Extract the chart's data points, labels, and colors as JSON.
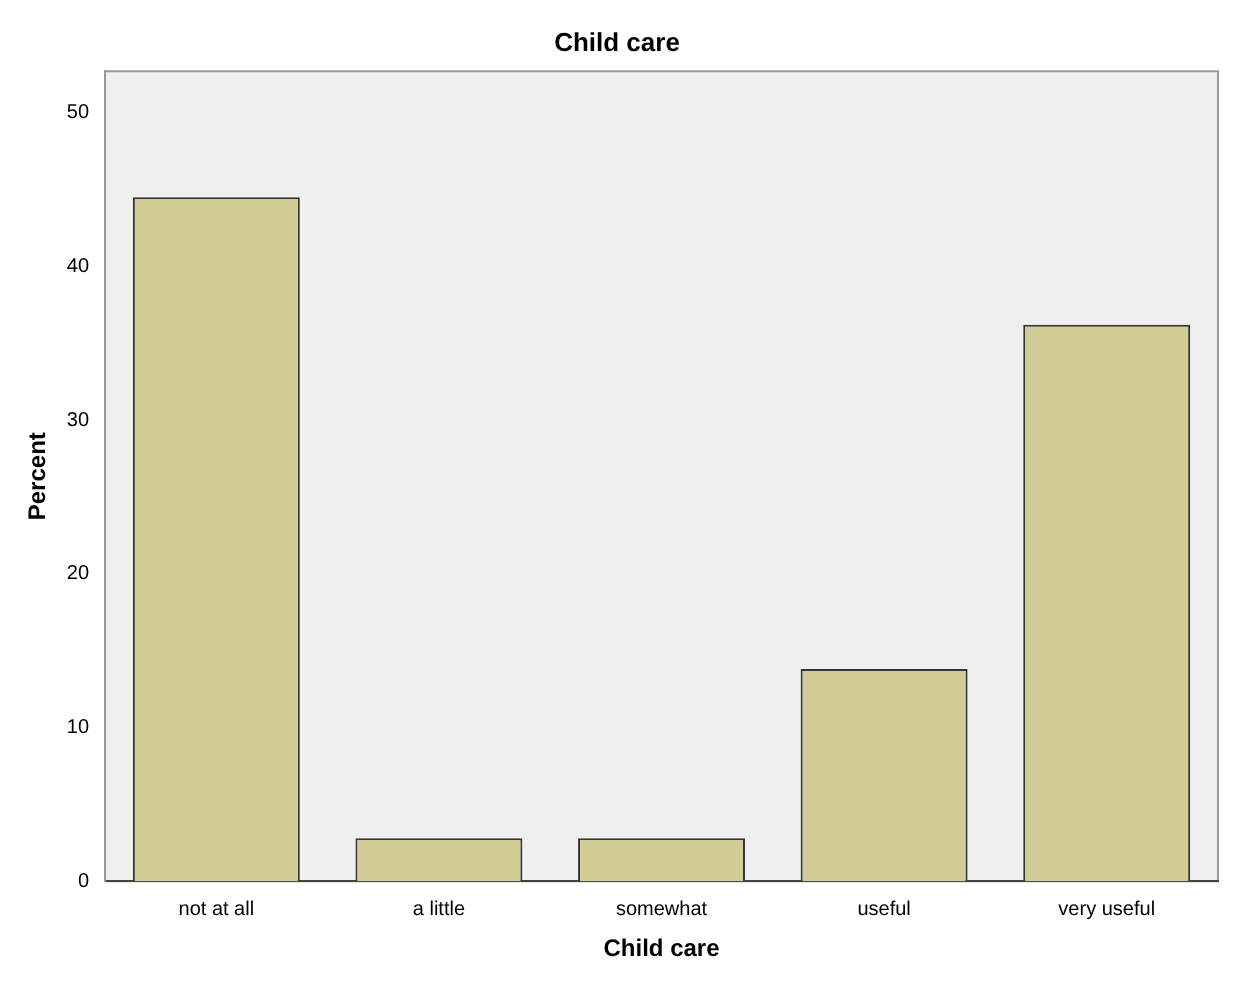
{
  "chart_data": {
    "type": "bar",
    "title": "Child care",
    "xlabel": "Child care",
    "ylabel": "Percent",
    "categories": [
      "not at all",
      "a little",
      "somewhat",
      "useful",
      "very useful"
    ],
    "values": [
      44.5,
      2.8,
      2.8,
      13.8,
      36.2
    ],
    "color": "#d2cd96",
    "ylim": [
      0,
      52.7
    ],
    "yticks": [
      0,
      10,
      20,
      30,
      40,
      50
    ],
    "grid": false,
    "legend": false
  }
}
